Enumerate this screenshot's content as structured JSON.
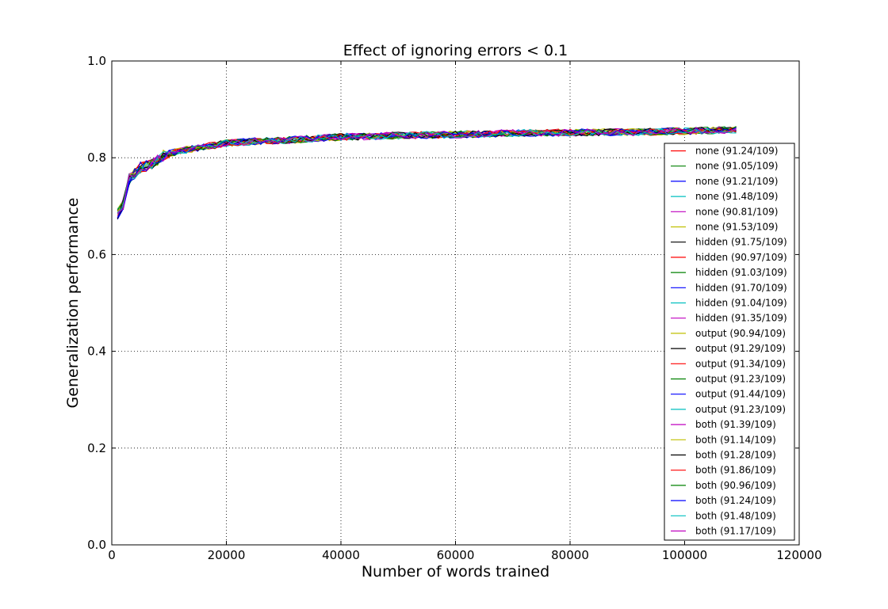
{
  "chart_data": {
    "type": "line",
    "title": "Effect of ignoring errors < 0.1",
    "xlabel": "Number of words trained",
    "ylabel": "Generalization performance",
    "xlim": [
      0,
      120000
    ],
    "ylim": [
      0.0,
      1.0
    ],
    "xticks": [
      0,
      20000,
      40000,
      60000,
      80000,
      100000,
      120000
    ],
    "yticks": [
      0.0,
      0.2,
      0.4,
      0.6,
      0.8,
      1.0
    ],
    "xtick_labels": [
      "0",
      "20000",
      "40000",
      "60000",
      "80000",
      "100000",
      "120000"
    ],
    "ytick_labels": [
      "0.0",
      "0.2",
      "0.4",
      "0.6",
      "0.8",
      "1.0"
    ],
    "grid": true,
    "legend_position": "right",
    "curve_x": [
      1000,
      2000,
      3000,
      5000,
      7000,
      9000,
      12000,
      15000,
      20000,
      25000,
      30000,
      40000,
      50000,
      60000,
      70000,
      80000,
      90000,
      100000,
      109000
    ],
    "curve_y": [
      0.683,
      0.705,
      0.755,
      0.78,
      0.785,
      0.805,
      0.815,
      0.82,
      0.83,
      0.834,
      0.836,
      0.843,
      0.846,
      0.848,
      0.851,
      0.852,
      0.853,
      0.855,
      0.858
    ],
    "series": [
      {
        "name": "none (91.24/109)",
        "color": "#ff0000"
      },
      {
        "name": "none (91.05/109)",
        "color": "#008000"
      },
      {
        "name": "none (91.21/109)",
        "color": "#0000ff"
      },
      {
        "name": "none (91.48/109)",
        "color": "#00bfbf"
      },
      {
        "name": "none (90.81/109)",
        "color": "#bf00bf"
      },
      {
        "name": "none (91.53/109)",
        "color": "#bfbf00"
      },
      {
        "name": "hidden (91.75/109)",
        "color": "#000000"
      },
      {
        "name": "hidden (90.97/109)",
        "color": "#ff0000"
      },
      {
        "name": "hidden (91.03/109)",
        "color": "#008000"
      },
      {
        "name": "hidden (91.70/109)",
        "color": "#0000ff"
      },
      {
        "name": "hidden (91.04/109)",
        "color": "#00bfbf"
      },
      {
        "name": "hidden (91.35/109)",
        "color": "#bf00bf"
      },
      {
        "name": "output (90.94/109)",
        "color": "#bfbf00"
      },
      {
        "name": "output (91.29/109)",
        "color": "#000000"
      },
      {
        "name": "output (91.34/109)",
        "color": "#ff0000"
      },
      {
        "name": "output (91.23/109)",
        "color": "#008000"
      },
      {
        "name": "output (91.44/109)",
        "color": "#0000ff"
      },
      {
        "name": "output (91.23/109)",
        "color": "#00bfbf"
      },
      {
        "name": "both (91.39/109)",
        "color": "#bf00bf"
      },
      {
        "name": "both (91.14/109)",
        "color": "#bfbf00"
      },
      {
        "name": "both (91.28/109)",
        "color": "#000000"
      },
      {
        "name": "both (91.86/109)",
        "color": "#ff0000"
      },
      {
        "name": "both (90.96/109)",
        "color": "#008000"
      },
      {
        "name": "both (91.24/109)",
        "color": "#0000ff"
      },
      {
        "name": "both (91.48/109)",
        "color": "#00bfbf"
      },
      {
        "name": "both (91.17/109)",
        "color": "#bf00bf"
      }
    ]
  }
}
